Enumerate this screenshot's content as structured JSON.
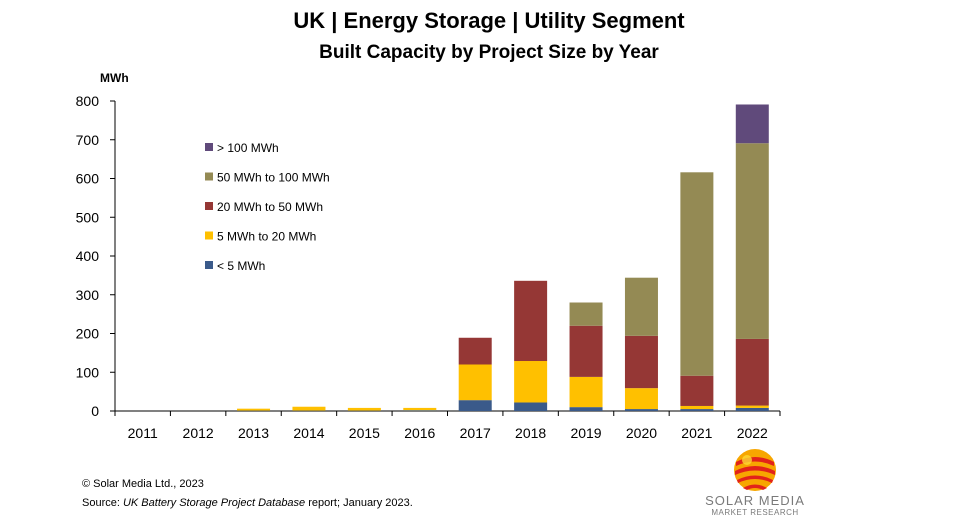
{
  "title": "UK | Energy Storage | Utility Segment",
  "subtitle": "Built Capacity by Project Size by Year",
  "footer": {
    "copyright": "© Solar Media Ltd., 2023",
    "source_prefix": "Source: ",
    "source_italic": "UK Battery Storage Project Database",
    "source_suffix": " report; January 2023."
  },
  "logo": {
    "name": "SOLAR MEDIA",
    "tagline": "MARKET RESEARCH",
    "icon": "solar-media-globe-icon",
    "colors": [
      "#e2231a",
      "#f7a600",
      "#fdd835"
    ]
  },
  "chart_data": {
    "type": "bar",
    "stacked": true,
    "ylabel": "MWh",
    "ylim": [
      0,
      800
    ],
    "yticks": [
      0,
      100,
      200,
      300,
      400,
      500,
      600,
      700,
      800
    ],
    "categories": [
      "2011",
      "2012",
      "2013",
      "2014",
      "2015",
      "2016",
      "2017",
      "2018",
      "2019",
      "2020",
      "2021",
      "2022"
    ],
    "grid": false,
    "legend_position": "top-left",
    "series": [
      {
        "name": "< 5 MWh",
        "color": "#3a5a8a",
        "values": [
          0,
          0,
          1,
          1,
          1,
          2,
          28,
          22,
          10,
          5,
          5,
          8
        ]
      },
      {
        "name": "5 MWh to 20 MWh",
        "color": "#ffc000",
        "values": [
          0,
          0,
          5,
          10,
          7,
          6,
          92,
          107,
          78,
          54,
          8,
          6
        ]
      },
      {
        "name": "20 MWh to 50 MWh",
        "color": "#953735",
        "values": [
          0,
          0,
          0,
          0,
          0,
          0,
          69,
          207,
          132,
          135,
          78,
          172
        ]
      },
      {
        "name": "50 MWh to 100 MWh",
        "color": "#948a54",
        "values": [
          0,
          0,
          0,
          0,
          0,
          0,
          0,
          0,
          60,
          150,
          525,
          505
        ]
      },
      {
        "name": "> 100 MWh",
        "color": "#604a7b",
        "values": [
          0,
          0,
          0,
          0,
          0,
          0,
          0,
          0,
          0,
          0,
          0,
          100
        ]
      }
    ]
  }
}
